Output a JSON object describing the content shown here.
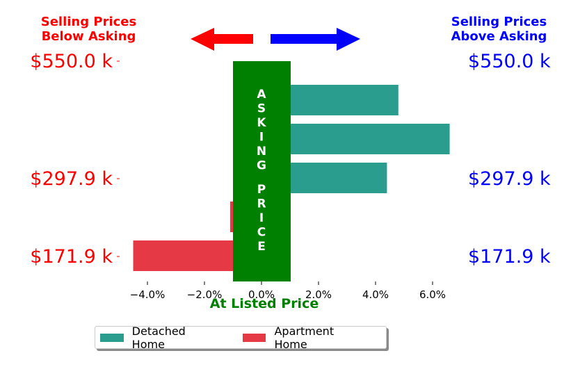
{
  "headers": {
    "left": "Selling Prices\nBelow Asking",
    "right": "Selling Prices\nAbove Asking",
    "left_color": "#ff0000",
    "right_color": "#0000ff"
  },
  "price_levels": {
    "left": [
      "$550.0 k",
      "$297.9 k",
      "$171.9 k"
    ],
    "right": [
      "$550.0 k",
      "$297.9 k",
      "$171.9 k"
    ]
  },
  "asking_band": {
    "label": "ASKING  PRICE",
    "color": "#008000"
  },
  "arrows": {
    "left_color": "#ff0000",
    "right_color": "#0000ff"
  },
  "chart_data": {
    "type": "bar",
    "orientation": "horizontal",
    "xlabel": "At Listed Price",
    "xlabel_color": "#008000",
    "xlim": [
      -5.0,
      7.0
    ],
    "x_ticks": [
      -4.0,
      -2.0,
      0.0,
      2.0,
      4.0,
      6.0
    ],
    "x_tick_labels": [
      "−4.0%",
      "−2.0%",
      "0.0%",
      "2.0%",
      "4.0%",
      "6.0%"
    ],
    "categories": [
      "$171.9 k",
      "",
      "$297.9 k",
      "",
      "$550.0 k"
    ],
    "series": [
      {
        "name": "Detached Home",
        "color": "#2a9d8f",
        "values": [
          null,
          null,
          4.4,
          6.6,
          4.8
        ]
      },
      {
        "name": "Apartment Home",
        "color": "#e63946",
        "values": [
          -4.5,
          -1.1,
          null,
          null,
          null
        ]
      }
    ],
    "legend_position": "bottom",
    "grid": false
  }
}
